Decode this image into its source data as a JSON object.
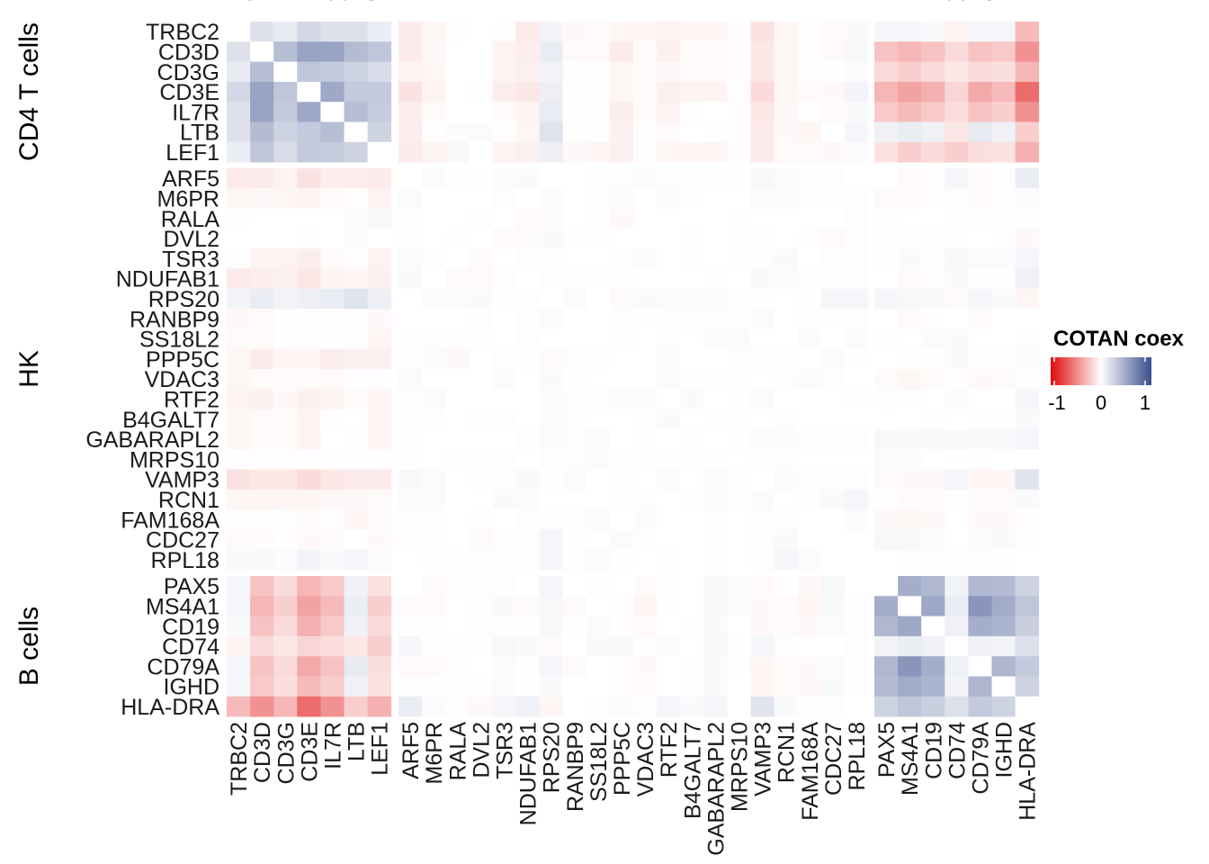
{
  "chart_data": {
    "type": "heatmap",
    "title": "",
    "groups": [
      {
        "name": "CD4 T cells",
        "genes": [
          "TRBC2",
          "CD3D",
          "CD3G",
          "CD3E",
          "IL7R",
          "LTB",
          "LEF1"
        ]
      },
      {
        "name": "HK",
        "genes": [
          "ARF5",
          "M6PR",
          "RALA",
          "DVL2",
          "TSR3",
          "NDUFAB1",
          "RPS20",
          "RANBP9",
          "SS18L2",
          "PPP5C",
          "VDAC3",
          "RTF2",
          "B4GALT7",
          "GABARAPL2",
          "MRPS10",
          "VAMP3",
          "RCN1",
          "FAM168A",
          "CDC27",
          "RPL18"
        ]
      },
      {
        "name": "B cells",
        "genes": [
          "PAX5",
          "MS4A1",
          "CD19",
          "CD74",
          "CD79A",
          "IGHD",
          "HLA-DRA"
        ]
      }
    ],
    "legend": {
      "title": "COTAN coex",
      "ticks": [
        "-1",
        "0",
        "1"
      ],
      "range": [
        -1,
        1
      ],
      "low_color": "#E00A0A",
      "mid_color": "#FFFFFF",
      "high_color": "#3A4E8C",
      "placement": "right"
    },
    "blocks": {
      "CD4_CD4": [
        [
          0,
          0.17,
          0.12,
          0.22,
          0.17,
          0.17,
          0.1
        ],
        [
          0.17,
          0,
          0.37,
          0.52,
          0.52,
          0.38,
          0.32
        ],
        [
          0.12,
          0.37,
          0,
          0.32,
          0.3,
          0.25,
          0.2
        ],
        [
          0.22,
          0.52,
          0.32,
          0,
          0.49,
          0.3,
          0.3
        ],
        [
          0.17,
          0.52,
          0.3,
          0.49,
          0,
          0.37,
          0.29
        ],
        [
          0.17,
          0.38,
          0.25,
          0.3,
          0.37,
          0,
          0.25
        ],
        [
          0.1,
          0.32,
          0.2,
          0.3,
          0.29,
          0.25,
          0
        ]
      ],
      "HK_CD4": [
        [
          -0.08,
          -0.08,
          -0.05,
          -0.12,
          -0.07,
          -0.07,
          -0.08
        ],
        [
          -0.04,
          -0.03,
          -0.04,
          -0.05,
          -0.02,
          -0.01,
          -0.05
        ],
        [
          -0.01,
          0,
          0,
          0,
          0,
          0.02,
          0.04
        ],
        [
          0,
          0,
          0,
          0.01,
          0,
          0.02,
          0
        ],
        [
          -0.01,
          -0.05,
          -0.05,
          -0.07,
          -0.02,
          -0.01,
          -0.05
        ],
        [
          -0.09,
          -0.07,
          -0.06,
          -0.1,
          -0.05,
          -0.04,
          -0.06
        ],
        [
          0.06,
          0.11,
          0.07,
          0.09,
          0.11,
          0.16,
          0.09
        ],
        [
          -0.03,
          -0.02,
          -0.01,
          -0.01,
          -0.01,
          -0.01,
          -0.03
        ],
        [
          -0.02,
          -0.02,
          -0.01,
          -0.01,
          -0.01,
          0.01,
          -0.04
        ],
        [
          -0.04,
          -0.08,
          -0.04,
          -0.04,
          -0.07,
          -0.06,
          -0.06
        ],
        [
          -0.04,
          -0.02,
          -0.02,
          -0.02,
          -0.02,
          -0.01,
          -0.01
        ],
        [
          -0.05,
          -0.06,
          -0.03,
          -0.06,
          -0.05,
          -0.02,
          -0.04
        ],
        [
          -0.04,
          -0.02,
          -0.02,
          -0.05,
          -0.01,
          0,
          -0.04
        ],
        [
          -0.04,
          -0.02,
          -0.02,
          -0.05,
          0,
          0.01,
          -0.04
        ],
        [
          -0.01,
          -0.01,
          -0.01,
          -0.01,
          -0.01,
          -0.01,
          -0.01
        ],
        [
          -0.12,
          -0.1,
          -0.1,
          -0.15,
          -0.1,
          -0.09,
          -0.08
        ],
        [
          -0.04,
          -0.04,
          -0.04,
          -0.04,
          -0.03,
          -0.03,
          -0.02
        ],
        [
          -0.01,
          -0.01,
          0.01,
          -0.02,
          -0.01,
          -0.04,
          -0.02
        ],
        [
          -0.02,
          -0.02,
          -0.01,
          -0.03,
          -0.02,
          0,
          -0.03
        ],
        [
          0.03,
          0.04,
          0.02,
          0.06,
          0.03,
          0.05,
          0.02
        ]
      ],
      "B_CD4": [
        [
          0.05,
          -0.25,
          -0.15,
          -0.3,
          -0.22,
          0.08,
          -0.12
        ],
        [
          0.05,
          -0.3,
          -0.2,
          -0.38,
          -0.28,
          0.1,
          -0.2
        ],
        [
          0.03,
          -0.25,
          -0.15,
          -0.32,
          -0.22,
          0.08,
          -0.15
        ],
        [
          -0.05,
          -0.15,
          -0.1,
          -0.17,
          -0.14,
          -0.1,
          -0.2
        ],
        [
          0.05,
          -0.25,
          -0.15,
          -0.35,
          -0.25,
          0.12,
          -0.13
        ],
        [
          0.05,
          -0.22,
          -0.13,
          -0.28,
          -0.2,
          0.08,
          -0.12
        ],
        [
          -0.28,
          -0.45,
          -0.3,
          -0.6,
          -0.45,
          -0.2,
          -0.32
        ]
      ],
      "HK_HK": [
        [
          0,
          0.02,
          -0.01,
          -0.01,
          0.02,
          0.03,
          0,
          0,
          0.01,
          0.01,
          0.02,
          0.01,
          0.01,
          0.01,
          -0.01,
          0.04,
          0.02,
          0.01,
          0.01,
          0
        ],
        [
          0.02,
          0,
          0,
          0,
          0.01,
          0,
          0.02,
          0,
          0.01,
          0.02,
          0,
          0.02,
          0.01,
          0,
          0,
          0.02,
          0.02,
          0.01,
          0.01,
          0.01
        ],
        [
          -0.01,
          0,
          0,
          -0.01,
          0,
          -0.02,
          0.02,
          0,
          -0.01,
          -0.03,
          0,
          0,
          0,
          0,
          -0.01,
          0,
          0,
          0,
          0,
          0.01
        ],
        [
          -0.01,
          0,
          -0.01,
          0,
          -0.02,
          -0.02,
          0.03,
          0.01,
          -0.01,
          0,
          0,
          0,
          -0.01,
          0,
          -0.01,
          -0.01,
          0,
          -0.01,
          -0.02,
          0.01
        ],
        [
          0.02,
          0.01,
          0,
          -0.02,
          0,
          0.01,
          -0.01,
          0,
          0,
          0.01,
          0.02,
          0,
          0.01,
          0,
          0.01,
          0.01,
          0.03,
          0,
          0.01,
          0.01
        ],
        [
          0.03,
          0,
          -0.02,
          -0.02,
          0.01,
          0,
          0.01,
          0.01,
          0.01,
          0.01,
          0,
          0,
          0,
          0.01,
          0,
          0.03,
          0.02,
          0.01,
          0.01,
          0.01
        ],
        [
          0,
          0.02,
          0.02,
          0.03,
          -0.01,
          0.01,
          0,
          0.02,
          0,
          -0.02,
          0.03,
          0.02,
          0.02,
          0.02,
          0.01,
          -0.01,
          0,
          0.01,
          0.05,
          0.05
        ],
        [
          0,
          0,
          0,
          0.01,
          0,
          0.01,
          0.02,
          0,
          0,
          0.01,
          -0.01,
          0.01,
          0.01,
          0.01,
          0.01,
          0.02,
          0,
          0.01,
          -0.01,
          0.01
        ],
        [
          0.01,
          0.01,
          -0.01,
          -0.01,
          0,
          0.01,
          0,
          0,
          0,
          0.01,
          0,
          0.01,
          0,
          0.02,
          0.02,
          0,
          0,
          0.02,
          0,
          0.02
        ],
        [
          0.01,
          0.02,
          -0.03,
          0,
          0.01,
          0.01,
          -0.02,
          0.01,
          0.01,
          0,
          0,
          0.02,
          0,
          0,
          0.01,
          0.01,
          0.01,
          0,
          0.02,
          -0.01
        ],
        [
          0.02,
          0,
          0,
          0,
          0.02,
          0,
          0.03,
          -0.01,
          0,
          0,
          0,
          0.02,
          -0.01,
          -0.01,
          -0.01,
          0,
          0.01,
          0.02,
          0.01,
          0
        ],
        [
          0.01,
          0.02,
          0,
          0,
          0,
          0,
          0.02,
          0.01,
          0.01,
          0.02,
          0.02,
          0,
          0.03,
          0,
          -0.01,
          0.02,
          0,
          0,
          0,
          -0.01
        ],
        [
          0.01,
          0.01,
          0,
          -0.01,
          0.01,
          0,
          0.02,
          0.01,
          0,
          0,
          -0.01,
          0.03,
          0,
          -0.01,
          -0.01,
          0,
          0.01,
          0,
          0,
          0
        ],
        [
          0.01,
          0,
          0,
          0,
          0,
          0.01,
          0.02,
          0.01,
          0.02,
          0,
          -0.01,
          0,
          -0.01,
          0,
          -0.01,
          0.02,
          0.02,
          0.01,
          0.01,
          0.01
        ],
        [
          -0.01,
          0,
          -0.01,
          -0.01,
          0.01,
          0,
          0.01,
          0.01,
          0.02,
          0.01,
          -0.01,
          -0.01,
          -0.01,
          -0.01,
          0,
          -0.01,
          0.01,
          0,
          0,
          0
        ],
        [
          0.04,
          0.02,
          0,
          -0.01,
          0.01,
          0.03,
          -0.01,
          0.02,
          0,
          0.01,
          0,
          0.02,
          0,
          0.02,
          -0.01,
          0,
          0.02,
          0.01,
          0.01,
          0.01
        ],
        [
          0.02,
          0.02,
          0,
          0,
          0.03,
          0.02,
          0,
          0,
          0,
          0.01,
          0.01,
          0,
          0.01,
          0.02,
          0.01,
          0.02,
          0,
          0.01,
          0.03,
          0.05
        ],
        [
          0.01,
          0.01,
          0,
          -0.01,
          0,
          0.01,
          0.01,
          0.01,
          0.02,
          0,
          0.02,
          0,
          0,
          0.01,
          0,
          0.01,
          0.01,
          0,
          0,
          0.02
        ],
        [
          0.01,
          0.01,
          0,
          -0.02,
          0.01,
          0.01,
          0.05,
          -0.01,
          0,
          0.02,
          0.01,
          0,
          0,
          0.01,
          0,
          0.01,
          0.03,
          0,
          0,
          0
        ],
        [
          0,
          0.01,
          0.01,
          0.01,
          0.01,
          0.01,
          0.05,
          0.01,
          0.02,
          -0.01,
          0,
          -0.01,
          0,
          0.01,
          0,
          0.01,
          0.05,
          0.02,
          0,
          0
        ]
      ],
      "B_HK": [
        [
          0,
          -0.02,
          0.01,
          0.01,
          0.01,
          0,
          0.05,
          0,
          0.01,
          0,
          -0.02,
          0.01,
          0,
          0.04,
          0.02,
          -0.02,
          -0.01,
          -0.03,
          0.04,
          0
        ],
        [
          -0.02,
          -0.02,
          0,
          0.01,
          0.03,
          -0.02,
          0.04,
          -0.02,
          0,
          -0.01,
          -0.04,
          -0.01,
          0,
          0.03,
          0.02,
          -0.03,
          -0.02,
          -0.04,
          0.04,
          0.01
        ],
        [
          -0.01,
          -0.01,
          0,
          0.01,
          0.01,
          -0.01,
          0.04,
          -0.01,
          0.02,
          -0.01,
          -0.02,
          0,
          0.01,
          0.03,
          0,
          -0.03,
          -0.02,
          -0.03,
          0.02,
          0.01
        ],
        [
          0.05,
          0.01,
          -0.01,
          -0.01,
          0.04,
          0.03,
          -0.02,
          0,
          0.03,
          0.03,
          -0.01,
          0.02,
          0,
          0.04,
          -0.01,
          0.05,
          0.01,
          0,
          0,
          0.01
        ],
        [
          -0.02,
          -0.02,
          0.01,
          0,
          0.02,
          -0.01,
          0.05,
          -0.02,
          0,
          -0.01,
          -0.03,
          0,
          0.01,
          0.03,
          0.01,
          -0.04,
          -0.02,
          -0.03,
          0.02,
          0.01
        ],
        [
          -0.01,
          -0.01,
          0.01,
          0.01,
          0.02,
          -0.01,
          0.03,
          0,
          0,
          -0.01,
          -0.02,
          0,
          0.01,
          0.03,
          0,
          -0.04,
          -0.02,
          -0.03,
          0.03,
          0.01
        ],
        [
          0.1,
          0.02,
          0.01,
          -0.03,
          0.05,
          0.08,
          -0.04,
          0,
          0.01,
          0.02,
          0.01,
          0.05,
          0.03,
          0.05,
          0,
          0.15,
          0.03,
          0.01,
          0.01,
          0
        ]
      ],
      "B_B": [
        [
          0,
          0.46,
          0.4,
          0.07,
          0.4,
          0.38,
          0.25
        ],
        [
          0.46,
          0,
          0.5,
          0.1,
          0.6,
          0.47,
          0.32
        ],
        [
          0.4,
          0.5,
          0,
          0.08,
          0.46,
          0.42,
          0.27
        ],
        [
          0.07,
          0.1,
          0.08,
          0,
          0.08,
          0.06,
          0.17
        ],
        [
          0.4,
          0.6,
          0.46,
          0.08,
          0,
          0.41,
          0.3
        ],
        [
          0.38,
          0.47,
          0.42,
          0.06,
          0.41,
          0,
          0.25
        ],
        [
          0.25,
          0.32,
          0.27,
          0.17,
          0.3,
          0.25,
          0
        ]
      ]
    }
  }
}
